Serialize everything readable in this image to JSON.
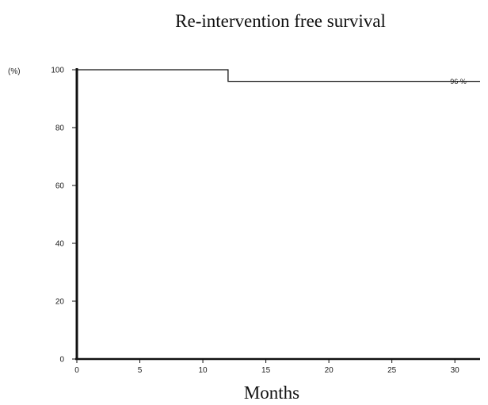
{
  "chart_data": {
    "type": "line",
    "title": "Re-intervention free survival",
    "xlabel": "Months",
    "y_unit_label": "(%)",
    "xlim": [
      0,
      32
    ],
    "ylim": [
      0,
      100
    ],
    "x_ticks": [
      0,
      5,
      10,
      15,
      20,
      25,
      30
    ],
    "y_ticks": [
      0,
      20,
      40,
      60,
      80,
      100
    ],
    "grid": false,
    "legend": "none",
    "series": [
      {
        "step": true,
        "x": [
          0,
          12,
          12,
          32
        ],
        "y": [
          100,
          100,
          96,
          96
        ]
      }
    ],
    "annotations": [
      {
        "text": "96 %",
        "x": 30,
        "y": 96
      }
    ],
    "colors": {
      "line": "#111111",
      "axis": "#111111"
    }
  }
}
